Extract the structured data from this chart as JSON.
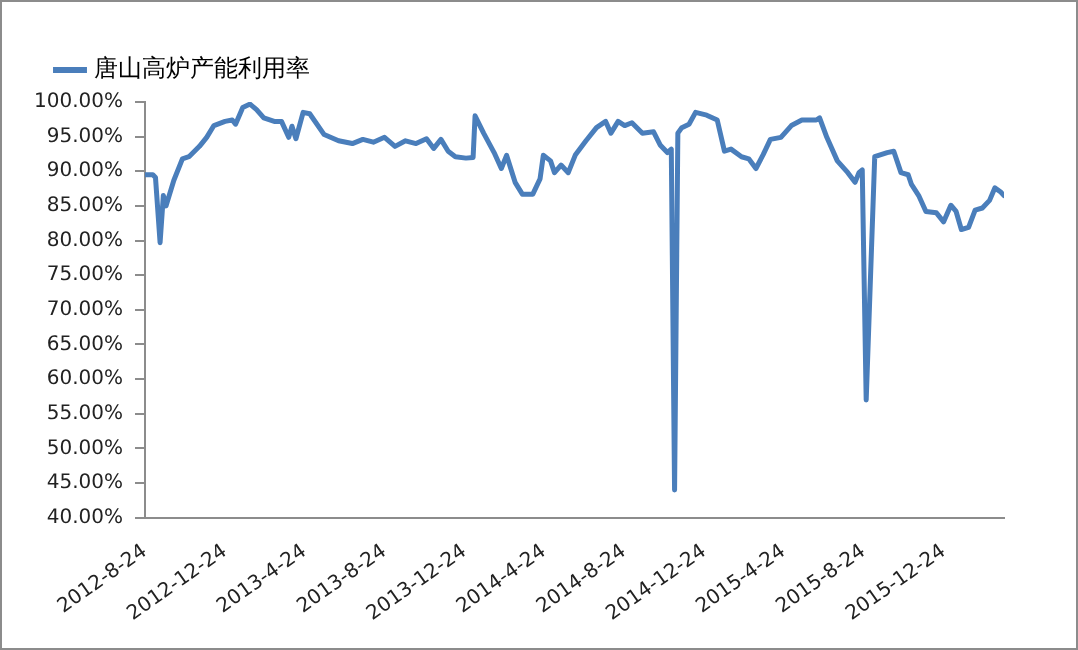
{
  "chart_data": {
    "type": "line",
    "legend": "top left",
    "marker": "none",
    "line_style": "solid",
    "grid": false,
    "xlim": [
      "2012-08-24",
      "2016-03-25"
    ],
    "xticks": [
      {
        "value": "2012-08-24",
        "label": "2012-8-24"
      },
      {
        "value": "2012-12-24",
        "label": "2012-12-24"
      },
      {
        "value": "2013-04-24",
        "label": "2013-4-24"
      },
      {
        "value": "2013-08-24",
        "label": "2013-8-24"
      },
      {
        "value": "2013-12-24",
        "label": "2013-12-24"
      },
      {
        "value": "2014-04-24",
        "label": "2014-4-24"
      },
      {
        "value": "2014-08-24",
        "label": "2014-8-24"
      },
      {
        "value": "2014-12-24",
        "label": "2014-12-24"
      },
      {
        "value": "2015-04-24",
        "label": "2015-4-24"
      },
      {
        "value": "2015-08-24",
        "label": "2015-8-24"
      },
      {
        "value": "2015-12-24",
        "label": "2015-12-24"
      }
    ],
    "ylim": [
      40,
      100
    ],
    "yticks": [
      {
        "value": 40,
        "label": "40.00%"
      },
      {
        "value": 45,
        "label": "45.00%"
      },
      {
        "value": 50,
        "label": "50.00%"
      },
      {
        "value": 55,
        "label": "55.00%"
      },
      {
        "value": 60,
        "label": "60.00%"
      },
      {
        "value": 65,
        "label": "65.00%"
      },
      {
        "value": 70,
        "label": "70.00%"
      },
      {
        "value": 75,
        "label": "75.00%"
      },
      {
        "value": 80,
        "label": "80.00%"
      },
      {
        "value": 85,
        "label": "85.00%"
      },
      {
        "value": 90,
        "label": "90.00%"
      },
      {
        "value": 95,
        "label": "95.00%"
      },
      {
        "value": 100,
        "label": "100.00%"
      }
    ],
    "x": [
      "2012-08-24",
      "2012-09-05",
      "2012-09-09",
      "2012-09-16",
      "2012-09-21",
      "2012-09-25",
      "2012-10-07",
      "2012-10-20",
      "2012-10-30",
      "2012-11-15",
      "2012-11-26",
      "2012-12-07",
      "2012-12-24",
      "2013-01-04",
      "2013-01-09",
      "2013-01-20",
      "2013-01-31",
      "2013-02-10",
      "2013-02-21",
      "2013-03-09",
      "2013-03-20",
      "2013-03-31",
      "2013-04-05",
      "2013-04-11",
      "2013-04-22",
      "2013-05-02",
      "2013-05-24",
      "2013-06-15",
      "2013-07-06",
      "2013-07-22",
      "2013-08-07",
      "2013-08-24",
      "2013-09-09",
      "2013-09-25",
      "2013-10-11",
      "2013-10-27",
      "2013-11-07",
      "2013-11-18",
      "2013-11-29",
      "2013-12-10",
      "2013-12-26",
      "2014-01-06",
      "2014-01-09",
      "2014-01-22",
      "2014-02-07",
      "2014-02-18",
      "2014-02-26",
      "2014-03-11",
      "2014-03-22",
      "2014-04-07",
      "2014-04-18",
      "2014-04-23",
      "2014-05-04",
      "2014-05-10",
      "2014-05-20",
      "2014-05-31",
      "2014-06-11",
      "2014-06-27",
      "2014-07-13",
      "2014-07-27",
      "2014-08-04",
      "2014-08-15",
      "2014-08-25",
      "2014-09-05",
      "2014-09-21",
      "2014-10-08",
      "2014-10-18",
      "2014-10-29",
      "2014-11-04",
      "2014-11-09",
      "2014-11-14",
      "2014-11-20",
      "2014-12-01",
      "2014-12-11",
      "2014-12-28",
      "2015-01-13",
      "2015-01-24",
      "2015-02-03",
      "2015-02-19",
      "2015-03-02",
      "2015-03-13",
      "2015-03-24",
      "2015-04-04",
      "2015-04-20",
      "2015-05-06",
      "2015-05-22",
      "2015-06-13",
      "2015-06-18",
      "2015-06-29",
      "2015-07-15",
      "2015-07-31",
      "2015-08-11",
      "2015-08-17",
      "2015-08-22",
      "2015-08-28",
      "2015-09-10",
      "2015-09-29",
      "2015-10-09",
      "2015-10-20",
      "2015-10-31",
      "2015-11-05",
      "2015-11-16",
      "2015-11-27",
      "2015-12-13",
      "2015-12-24",
      "2016-01-04",
      "2016-01-12",
      "2016-01-20",
      "2016-01-31",
      "2016-02-10",
      "2016-02-21",
      "2016-03-03",
      "2016-03-11",
      "2016-03-20",
      "2016-03-25"
    ],
    "series": [
      {
        "name": "唐山高炉产能利用率",
        "color": "#4a7ebb",
        "values": [
          89.5,
          89.5,
          89.1,
          79.7,
          86.5,
          85.0,
          88.7,
          91.8,
          92.1,
          93.6,
          94.9,
          96.6,
          97.2,
          97.4,
          96.8,
          99.2,
          99.7,
          98.9,
          97.7,
          97.2,
          97.2,
          94.9,
          96.5,
          94.7,
          98.5,
          98.3,
          95.3,
          94.4,
          94.0,
          94.6,
          94.2,
          94.9,
          93.6,
          94.4,
          94.0,
          94.7,
          93.3,
          94.6,
          92.9,
          92.1,
          91.9,
          92.0,
          98.0,
          95.5,
          92.7,
          90.4,
          92.3,
          88.4,
          86.7,
          86.7,
          88.9,
          92.3,
          91.5,
          89.8,
          90.9,
          89.8,
          92.4,
          94.4,
          96.3,
          97.2,
          95.5,
          97.2,
          96.6,
          97.0,
          95.5,
          95.7,
          93.8,
          92.7,
          93.2,
          44.0,
          95.5,
          96.3,
          96.8,
          98.5,
          98.1,
          97.4,
          92.9,
          93.2,
          92.1,
          91.8,
          90.4,
          92.4,
          94.6,
          94.9,
          96.6,
          97.4,
          97.4,
          97.7,
          94.9,
          91.5,
          89.8,
          88.4,
          89.8,
          90.2,
          57.0,
          92.1,
          92.7,
          92.9,
          89.8,
          89.5,
          88.1,
          86.5,
          84.2,
          84.0,
          82.7,
          85.1,
          84.2,
          81.6,
          81.9,
          84.4,
          84.7,
          85.8,
          87.6,
          87.0,
          86.5
        ]
      }
    ]
  }
}
